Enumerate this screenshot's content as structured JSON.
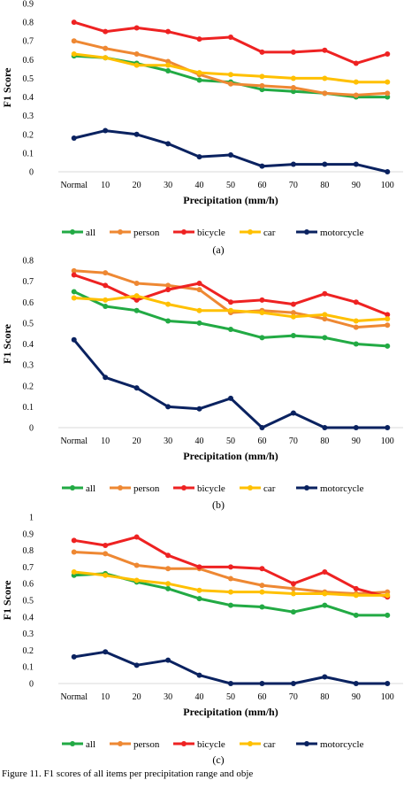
{
  "chart_data": [
    {
      "type": "line",
      "panel_label": "(a)",
      "xlabel": "Precipitation (mm/h)",
      "ylabel": "F1 Score",
      "ylim": [
        0,
        0.9
      ],
      "yticks": [
        "0",
        "0.1",
        "0.2",
        "0.3",
        "0.4",
        "0.5",
        "0.6",
        "0.7",
        "0.8",
        "0.9"
      ],
      "categories": [
        "Normal",
        "10",
        "20",
        "30",
        "40",
        "50",
        "60",
        "70",
        "80",
        "90",
        "100"
      ],
      "legend": "bottom",
      "series": [
        {
          "name": "all",
          "color": "#22aa44",
          "values": [
            0.62,
            0.61,
            0.58,
            0.54,
            0.49,
            0.48,
            0.44,
            0.43,
            0.42,
            0.4,
            0.4
          ]
        },
        {
          "name": "person",
          "color": "#ee8833",
          "values": [
            0.7,
            0.66,
            0.63,
            0.59,
            0.52,
            0.47,
            0.46,
            0.45,
            0.42,
            0.41,
            0.42
          ]
        },
        {
          "name": "bicycle",
          "color": "#ee2222",
          "values": [
            0.8,
            0.75,
            0.77,
            0.75,
            0.71,
            0.72,
            0.64,
            0.64,
            0.65,
            0.58,
            0.63
          ]
        },
        {
          "name": "car",
          "color": "#ffc000",
          "values": [
            0.63,
            0.61,
            0.57,
            0.57,
            0.53,
            0.52,
            0.51,
            0.5,
            0.5,
            0.48,
            0.48
          ]
        },
        {
          "name": "motorcycle",
          "color": "#0a2260",
          "values": [
            0.18,
            0.22,
            0.2,
            0.15,
            0.08,
            0.09,
            0.03,
            0.04,
            0.04,
            0.04,
            0.0
          ]
        }
      ]
    },
    {
      "type": "line",
      "panel_label": "(b)",
      "xlabel": "Precipitation (mm/h)",
      "ylabel": "F1 Score",
      "ylim": [
        0,
        0.8
      ],
      "yticks": [
        "0",
        "0.1",
        "0.2",
        "0.3",
        "0.4",
        "0.5",
        "0.6",
        "0.7",
        "0.8"
      ],
      "categories": [
        "Normal",
        "10",
        "20",
        "30",
        "40",
        "50",
        "60",
        "70",
        "80",
        "90",
        "100"
      ],
      "legend": "bottom",
      "series": [
        {
          "name": "all",
          "color": "#22aa44",
          "values": [
            0.65,
            0.58,
            0.56,
            0.51,
            0.5,
            0.47,
            0.43,
            0.44,
            0.43,
            0.4,
            0.39
          ]
        },
        {
          "name": "person",
          "color": "#ee8833",
          "values": [
            0.75,
            0.74,
            0.69,
            0.68,
            0.66,
            0.55,
            0.56,
            0.55,
            0.52,
            0.48,
            0.49
          ]
        },
        {
          "name": "bicycle",
          "color": "#ee2222",
          "values": [
            0.73,
            0.68,
            0.61,
            0.66,
            0.69,
            0.6,
            0.61,
            0.59,
            0.64,
            0.6,
            0.54
          ]
        },
        {
          "name": "car",
          "color": "#ffc000",
          "values": [
            0.62,
            0.61,
            0.63,
            0.59,
            0.56,
            0.56,
            0.55,
            0.53,
            0.54,
            0.51,
            0.52
          ]
        },
        {
          "name": "motorcycle",
          "color": "#0a2260",
          "values": [
            0.42,
            0.24,
            0.19,
            0.1,
            0.09,
            0.14,
            0.0,
            0.07,
            0.0,
            0.0,
            0.0
          ]
        }
      ]
    },
    {
      "type": "line",
      "panel_label": "(c)",
      "xlabel": "Precipitation (mm/h)",
      "ylabel": "F1 Score",
      "ylim": [
        0,
        1
      ],
      "yticks": [
        "0",
        "0.1",
        "0.2",
        "0.3",
        "0.4",
        "0.5",
        "0.6",
        "0.7",
        "0.8",
        "0.9",
        "1"
      ],
      "categories": [
        "Normal",
        "10",
        "20",
        "30",
        "40",
        "50",
        "60",
        "70",
        "80",
        "90",
        "100"
      ],
      "legend": "bottom",
      "series": [
        {
          "name": "all",
          "color": "#22aa44",
          "values": [
            0.65,
            0.66,
            0.61,
            0.57,
            0.51,
            0.47,
            0.46,
            0.43,
            0.47,
            0.41,
            0.41
          ]
        },
        {
          "name": "person",
          "color": "#ee8833",
          "values": [
            0.79,
            0.78,
            0.71,
            0.69,
            0.69,
            0.63,
            0.59,
            0.57,
            0.55,
            0.54,
            0.55
          ]
        },
        {
          "name": "bicycle",
          "color": "#ee2222",
          "values": [
            0.86,
            0.83,
            0.88,
            0.77,
            0.7,
            0.7,
            0.69,
            0.6,
            0.67,
            0.57,
            0.52
          ]
        },
        {
          "name": "car",
          "color": "#ffc000",
          "values": [
            0.67,
            0.65,
            0.62,
            0.6,
            0.56,
            0.55,
            0.55,
            0.54,
            0.54,
            0.53,
            0.53
          ]
        },
        {
          "name": "motorcycle",
          "color": "#0a2260",
          "values": [
            0.16,
            0.19,
            0.11,
            0.14,
            0.05,
            0.0,
            0.0,
            0.0,
            0.04,
            0.0,
            0.0
          ]
        }
      ]
    }
  ],
  "caption": "Figure 11. F1 scores of all items per precipitation range and obje"
}
